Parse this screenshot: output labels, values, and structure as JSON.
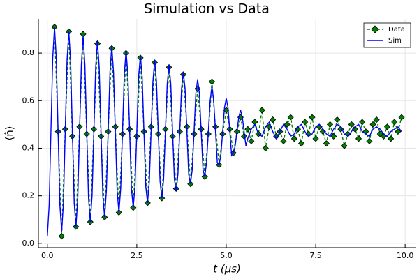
{
  "chart_data": {
    "type": "line",
    "title": "Simulation vs Data",
    "xlabel": "t (μs)",
    "ylabel": "⟨n̂⟩",
    "xlim": [
      -0.25,
      10.29
    ],
    "ylim": [
      -0.018,
      0.944
    ],
    "xticks": [
      {
        "value": 0,
        "label": "0.0"
      },
      {
        "value": 2.5,
        "label": "2.5"
      },
      {
        "value": 5,
        "label": "5.0"
      },
      {
        "value": 7.5,
        "label": "7.5"
      },
      {
        "value": 10,
        "label": "10.0"
      }
    ],
    "yticks": [
      {
        "value": 0,
        "label": "0.0"
      },
      0.2,
      0.4,
      0.6,
      0.8
    ],
    "grid": true,
    "legend": "top-right",
    "series": [
      {
        "name": "Data",
        "color": "#008000",
        "marker": "diamond",
        "linestyle": "dashed",
        "x": [
          0.2,
          0.3,
          0.4,
          0.5,
          0.6,
          0.7,
          0.8,
          0.9,
          1.0,
          1.1,
          1.2,
          1.3,
          1.4,
          1.5,
          1.6,
          1.7,
          1.8,
          1.9,
          2.0,
          2.1,
          2.2,
          2.3,
          2.4,
          2.5,
          2.6,
          2.7,
          2.8,
          2.9,
          3.0,
          3.1,
          3.2,
          3.3,
          3.4,
          3.5,
          3.6,
          3.7,
          3.8,
          3.9,
          4.0,
          4.1,
          4.2,
          4.3,
          4.4,
          4.5,
          4.6,
          4.7,
          4.8,
          4.9,
          5.0,
          5.1,
          5.2,
          5.3,
          5.4,
          5.5,
          5.6,
          5.7,
          5.8,
          5.9,
          6.0,
          6.1,
          6.2,
          6.3,
          6.4,
          6.5,
          6.6,
          6.7,
          6.8,
          6.9,
          7.0,
          7.1,
          7.2,
          7.3,
          7.4,
          7.5,
          7.6,
          7.7,
          7.8,
          7.9,
          8.0,
          8.1,
          8.2,
          8.3,
          8.4,
          8.5,
          8.6,
          8.7,
          8.8,
          8.9,
          9.0,
          9.1,
          9.2,
          9.3,
          9.4,
          9.5,
          9.6,
          9.7,
          9.8,
          9.9
        ],
        "values": [
          0.91,
          0.47,
          0.03,
          0.48,
          0.89,
          0.45,
          0.07,
          0.49,
          0.88,
          0.46,
          0.09,
          0.48,
          0.84,
          0.45,
          0.11,
          0.47,
          0.82,
          0.49,
          0.13,
          0.46,
          0.8,
          0.48,
          0.15,
          0.45,
          0.78,
          0.47,
          0.17,
          0.49,
          0.76,
          0.46,
          0.19,
          0.48,
          0.74,
          0.45,
          0.23,
          0.47,
          0.71,
          0.49,
          0.25,
          0.46,
          0.65,
          0.48,
          0.28,
          0.46,
          0.68,
          0.49,
          0.33,
          0.46,
          0.56,
          0.48,
          0.38,
          0.47,
          0.53,
          0.45,
          0.48,
          0.43,
          0.51,
          0.46,
          0.56,
          0.4,
          0.49,
          0.52,
          0.45,
          0.47,
          0.43,
          0.5,
          0.53,
          0.44,
          0.48,
          0.42,
          0.51,
          0.46,
          0.53,
          0.44,
          0.49,
          0.47,
          0.42,
          0.5,
          0.45,
          0.52,
          0.48,
          0.41,
          0.46,
          0.5,
          0.48,
          0.44,
          0.51,
          0.47,
          0.43,
          0.5,
          0.52,
          0.46,
          0.45,
          0.49,
          0.44,
          0.51,
          0.47,
          0.53
        ]
      },
      {
        "name": "Sim",
        "color": "#0000ff",
        "linestyle": "solid",
        "x": [
          0,
          0.05,
          0.1,
          0.15,
          0.2,
          0.25,
          0.3,
          0.35,
          0.4,
          0.45,
          0.5,
          0.55,
          0.6,
          0.65,
          0.7,
          0.75,
          0.8,
          0.85,
          0.9,
          0.95,
          1.0,
          1.05,
          1.1,
          1.15,
          1.2,
          1.25,
          1.3,
          1.35,
          1.4,
          1.45,
          1.5,
          1.55,
          1.6,
          1.65,
          1.7,
          1.75,
          1.8,
          1.85,
          1.9,
          1.95,
          2.0,
          2.05,
          2.1,
          2.15,
          2.2,
          2.25,
          2.3,
          2.35,
          2.4,
          2.45,
          2.5,
          2.55,
          2.6,
          2.65,
          2.7,
          2.75,
          2.8,
          2.85,
          2.9,
          2.95,
          3.0,
          3.05,
          3.1,
          3.15,
          3.2,
          3.25,
          3.3,
          3.35,
          3.4,
          3.45,
          3.5,
          3.55,
          3.6,
          3.65,
          3.7,
          3.75,
          3.8,
          3.85,
          3.9,
          3.95,
          4.0,
          4.05,
          4.1,
          4.15,
          4.2,
          4.25,
          4.3,
          4.35,
          4.4,
          4.45,
          4.5,
          4.55,
          4.6,
          4.65,
          4.7,
          4.75,
          4.8,
          4.85,
          4.9,
          4.95,
          5.0,
          5.05,
          5.1,
          5.15,
          5.2,
          5.25,
          5.3,
          5.35,
          5.4,
          5.45,
          5.5,
          5.55,
          5.6,
          5.7,
          5.8,
          5.9,
          6.0,
          6.1,
          6.2,
          6.3,
          6.4,
          6.5,
          6.6,
          6.7,
          6.8,
          6.9,
          7.0,
          7.1,
          7.2,
          7.3,
          7.4,
          7.5,
          7.6,
          7.7,
          7.8,
          7.9,
          8.0,
          8.1,
          8.2,
          8.3,
          8.4,
          8.5,
          8.6,
          8.7,
          8.8,
          8.9,
          9.0,
          9.1,
          9.2,
          9.3,
          9.4,
          9.5,
          9.6,
          9.7,
          9.8,
          9.9
        ],
        "values": [
          0.03,
          0.16,
          0.47,
          0.78,
          0.91,
          0.78,
          0.47,
          0.16,
          0.05,
          0.17,
          0.47,
          0.77,
          0.89,
          0.77,
          0.47,
          0.17,
          0.07,
          0.19,
          0.47,
          0.75,
          0.87,
          0.75,
          0.47,
          0.19,
          0.09,
          0.2,
          0.47,
          0.74,
          0.85,
          0.74,
          0.47,
          0.2,
          0.11,
          0.22,
          0.47,
          0.72,
          0.83,
          0.72,
          0.47,
          0.22,
          0.13,
          0.23,
          0.47,
          0.71,
          0.81,
          0.71,
          0.47,
          0.23,
          0.15,
          0.24,
          0.47,
          0.7,
          0.79,
          0.7,
          0.47,
          0.24,
          0.17,
          0.26,
          0.47,
          0.68,
          0.77,
          0.68,
          0.47,
          0.26,
          0.19,
          0.27,
          0.47,
          0.67,
          0.75,
          0.67,
          0.47,
          0.27,
          0.22,
          0.29,
          0.47,
          0.65,
          0.72,
          0.65,
          0.47,
          0.29,
          0.25,
          0.31,
          0.47,
          0.63,
          0.69,
          0.63,
          0.47,
          0.31,
          0.28,
          0.34,
          0.47,
          0.6,
          0.66,
          0.6,
          0.47,
          0.34,
          0.33,
          0.37,
          0.47,
          0.57,
          0.61,
          0.57,
          0.47,
          0.37,
          0.38,
          0.41,
          0.47,
          0.53,
          0.56,
          0.53,
          0.47,
          0.41,
          0.44,
          0.48,
          0.5,
          0.46,
          0.45,
          0.49,
          0.51,
          0.47,
          0.44,
          0.47,
          0.5,
          0.48,
          0.45,
          0.46,
          0.49,
          0.5,
          0.47,
          0.45,
          0.46,
          0.49,
          0.5,
          0.48,
          0.46,
          0.45,
          0.48,
          0.5,
          0.49,
          0.46,
          0.45,
          0.47,
          0.49,
          0.5,
          0.47,
          0.46,
          0.45,
          0.48,
          0.49,
          0.48,
          0.46,
          0.45,
          0.47,
          0.48,
          0.49,
          0.47
        ]
      }
    ]
  }
}
